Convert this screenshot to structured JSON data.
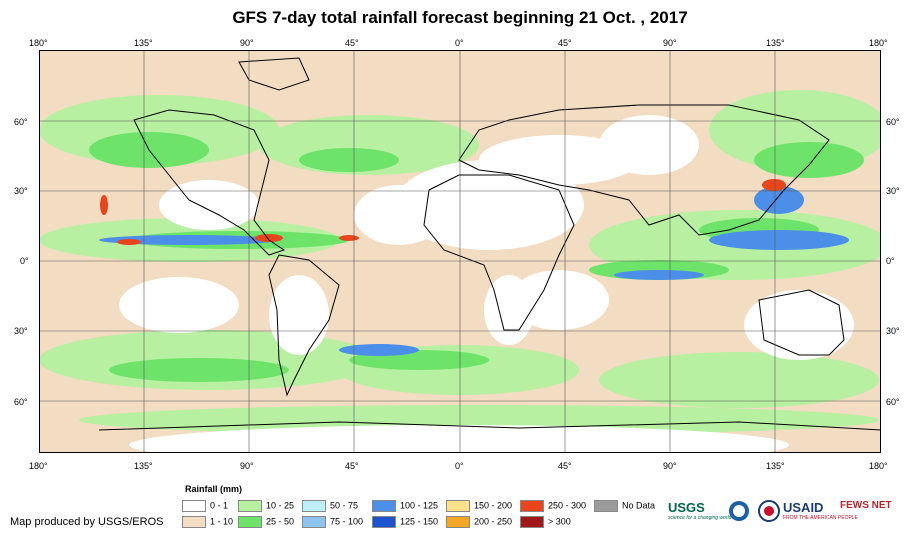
{
  "title": "GFS 7-day total rainfall forecast beginning 21 Oct. , 2017",
  "top_lon_ticks": [
    "180°",
    "135°",
    "90°",
    "45°",
    "0°",
    "45°",
    "90°",
    "135°",
    "180°"
  ],
  "bottom_lon_ticks": [
    "180°",
    "135°",
    "90°",
    "45°",
    "0°",
    "45°",
    "90°",
    "135°",
    "180°"
  ],
  "left_lat_ticks": [
    "60°",
    "30°",
    "0°",
    "30°",
    "60°"
  ],
  "right_lat_ticks": [
    "60°",
    "30°",
    "0°",
    "30°",
    "60°"
  ],
  "legend": {
    "title": "Rainfall (mm)",
    "items": [
      {
        "label": "0 - 1",
        "color": "#ffffff"
      },
      {
        "label": "1 - 10",
        "color": "#f2dcc2"
      },
      {
        "label": "10 - 25",
        "color": "#b7f0a0"
      },
      {
        "label": "25 - 50",
        "color": "#6ee36a"
      },
      {
        "label": "50 - 75",
        "color": "#bdf1f7"
      },
      {
        "label": "75 - 100",
        "color": "#8ec4ee"
      },
      {
        "label": "100 - 125",
        "color": "#4c8fe8"
      },
      {
        "label": "125 - 150",
        "color": "#1c54cf"
      },
      {
        "label": "150 - 200",
        "color": "#fbe28a"
      },
      {
        "label": "200 - 250",
        "color": "#f5a623"
      },
      {
        "label": "250 - 300",
        "color": "#e8461a"
      },
      {
        "label": "> 300",
        "color": "#a01818"
      },
      {
        "label": "No Data",
        "color": "#9b9b9b"
      }
    ]
  },
  "credit": "Map produced by USGS/EROS",
  "logos": {
    "usgs": "USGS",
    "usgs_tagline": "science for a changing world",
    "usaid": "USAID",
    "usaid_tagline": "FROM THE AMERICAN PEOPLE",
    "fews": "FEWS NET"
  }
}
